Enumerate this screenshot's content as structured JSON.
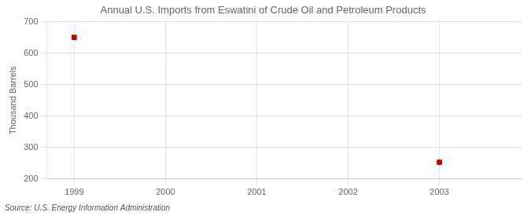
{
  "chart_data": {
    "type": "scatter",
    "title": "Annual U.S. Imports from Eswatini of Crude Oil and Petroleum Products",
    "y_label": "Thousand Barrels",
    "annotations": [
      "Source: U.S. Energy Information Administration"
    ],
    "x": [
      1999,
      2003
    ],
    "values": [
      650,
      253
    ],
    "color": "#cc0000",
    "marker": "square",
    "xlim": [
      1998.7,
      2003.9
    ],
    "xticks": [
      1999,
      2000,
      2001,
      2002,
      2003
    ],
    "ylim": [
      200,
      700
    ],
    "yticks": [
      200,
      300,
      400,
      500,
      600,
      700
    ],
    "grid": true
  }
}
